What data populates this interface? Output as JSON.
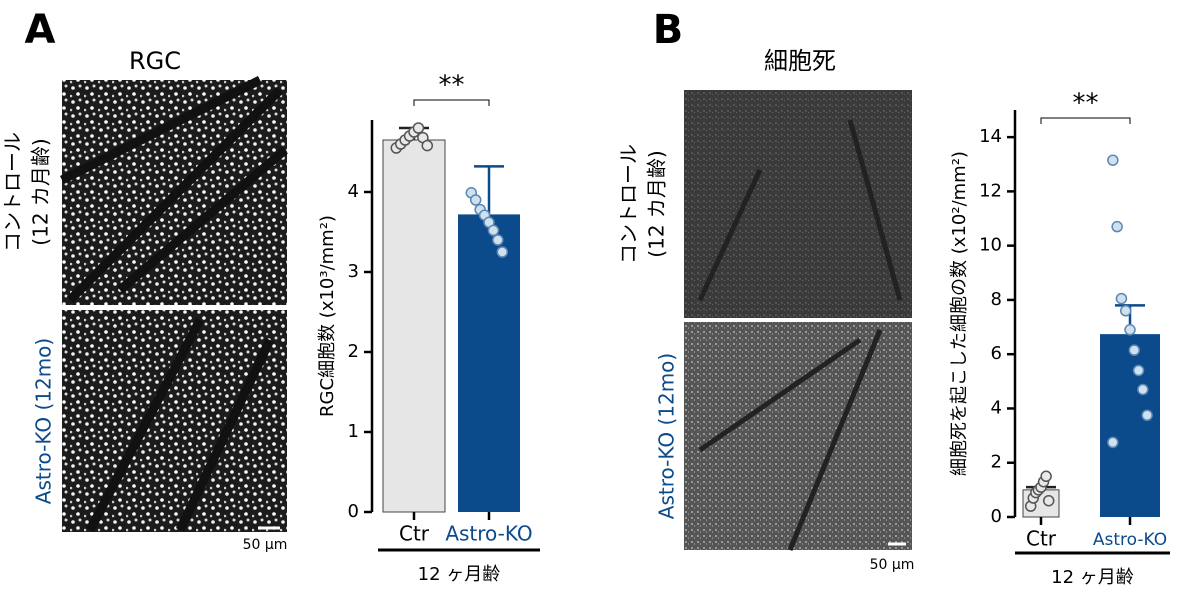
{
  "chart_data": [
    {
      "type": "bar",
      "panel": "A",
      "image_title": "RGC",
      "image_labels": [
        [
          "コントロール",
          "(12 カ月齢)"
        ],
        [
          "Astro-KO (12mo)"
        ]
      ],
      "scale_bar": "50 μm",
      "ylabel": "RGC細胞数 (x10³/mm²)",
      "xlabel": "12 ヶ月齢",
      "categories": [
        "Ctr",
        "Astro-KO"
      ],
      "colors": [
        "#e6e6e6",
        "#0b4a8b"
      ],
      "label_colors": [
        "#000000",
        "#0b4a8b"
      ],
      "values": [
        4.65,
        3.72
      ],
      "errors": [
        0.15,
        0.6
      ],
      "points": [
        [
          4.55,
          4.6,
          4.65,
          4.7,
          4.75,
          4.8,
          4.68,
          4.58
        ],
        [
          3.99,
          3.9,
          3.78,
          3.71,
          3.62,
          3.52,
          3.4,
          3.25
        ]
      ],
      "ylim": [
        0,
        4.9
      ],
      "yticks": [
        0,
        1,
        2,
        3,
        4
      ],
      "significance": "**"
    },
    {
      "type": "bar",
      "panel": "B",
      "image_title": "細胞死",
      "image_labels": [
        [
          "コントロール",
          "(12 カ月齢)"
        ],
        [
          "Astro-KO (12mo)"
        ]
      ],
      "scale_bar": "50 μm",
      "ylabel": "細胞死を起こした細胞の数 (x10²/mm²)",
      "xlabel": "12 ヶ月齢",
      "categories": [
        "Ctr",
        "Astro-KO"
      ],
      "colors": [
        "#e6e6e6",
        "#0b4a8b"
      ],
      "label_colors": [
        "#000000",
        "#0b4a8b"
      ],
      "values": [
        1.0,
        6.74
      ],
      "errors": [
        0.1,
        1.06
      ],
      "points": [
        [
          0.4,
          0.7,
          0.9,
          1.0,
          1.1,
          1.3,
          1.5,
          0.6
        ],
        [
          13.15,
          10.7,
          8.05,
          7.6,
          6.9,
          6.15,
          5.4,
          4.7,
          3.75,
          2.75
        ]
      ],
      "ylim": [
        0,
        15
      ],
      "yticks": [
        0,
        2,
        4,
        6,
        8,
        10,
        12,
        14
      ],
      "significance": "**"
    }
  ]
}
